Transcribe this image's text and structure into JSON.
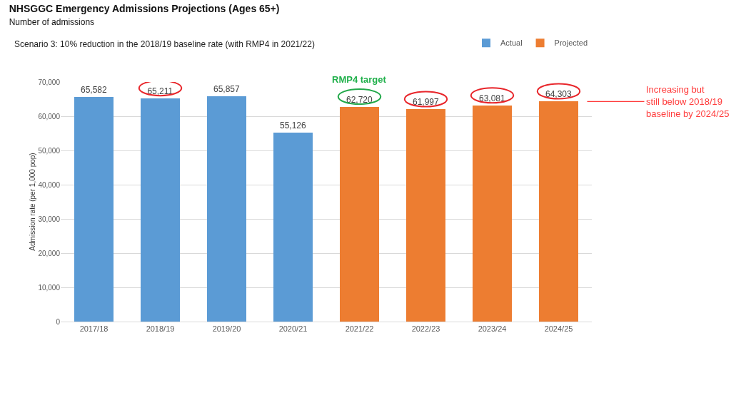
{
  "chart_data": {
    "type": "bar",
    "title": "NHSGGC Emergency Admissions Projections (Ages 65+)",
    "subtitle": "Number of admissions",
    "ylabel": "Admission rate (per 1,000 pop)",
    "categories": [
      "2017/18",
      "2018/19",
      "2019/20",
      "2020/21",
      "2021/22",
      "2022/23",
      "2023/24",
      "2024/25"
    ],
    "series": [
      {
        "name": "Actual",
        "color": "#5b9bd5",
        "values": [
          65582,
          65211,
          65857,
          55126,
          null,
          null,
          null,
          null
        ],
        "value_labels": [
          "65,582",
          "65,211",
          "65,857",
          "55,126",
          null,
          null,
          null,
          null
        ]
      },
      {
        "name": "Projected",
        "color": "#ed7d31",
        "values": [
          null,
          null,
          null,
          null,
          62720,
          61997,
          63081,
          64303
        ],
        "value_labels": [
          null,
          null,
          null,
          null,
          "62,720",
          "61,997",
          "63,081",
          "64,303"
        ]
      }
    ],
    "stacked": true,
    "ylim": [
      0,
      70000
    ],
    "yticks": [
      {
        "value": 0,
        "label": "0"
      },
      {
        "value": 10000,
        "label": "10,000"
      },
      {
        "value": 20000,
        "label": "20,000"
      },
      {
        "value": 30000,
        "label": "30,000"
      },
      {
        "value": 40000,
        "label": "40,000"
      },
      {
        "value": 50000,
        "label": "50,000"
      },
      {
        "value": 60000,
        "label": "60,000"
      },
      {
        "value": 70000,
        "label": "70,000"
      }
    ],
    "grid": "y",
    "legend": "top right",
    "annotations": [
      "Scenario 3: 10% reduction in the 2018/19 baseline rate (with RMP4 in 2021/22)",
      {
        "text": "RMP4 target",
        "x": "2021/22",
        "y": 62720
      },
      {
        "text": "Increasing but still below 2018/19 baseline by 2024/25",
        "x": "2024/25",
        "y": 64303
      }
    ]
  }
}
